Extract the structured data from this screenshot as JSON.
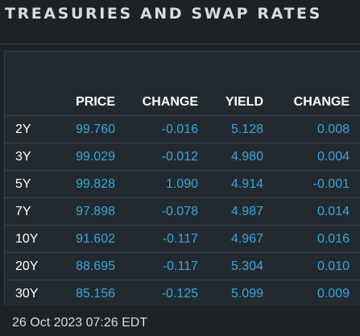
{
  "title": "TREASURIES AND SWAP RATES",
  "columns": {
    "price": "PRICE",
    "change": "CHANGE",
    "yield": "YIELD",
    "yield_change": "CHANGE"
  },
  "rows": [
    {
      "term": "2Y",
      "price": "99.760",
      "change": "-0.016",
      "yield": "5.128",
      "yield_change": "0.008"
    },
    {
      "term": "3Y",
      "price": "99.029",
      "change": "-0.012",
      "yield": "4.980",
      "yield_change": "0.004"
    },
    {
      "term": "5Y",
      "price": "99.828",
      "change": "1.090",
      "yield": "4.914",
      "yield_change": "-0.001"
    },
    {
      "term": "7Y",
      "price": "97.898",
      "change": "-0.078",
      "yield": "4.987",
      "yield_change": "0.014"
    },
    {
      "term": "10Y",
      "price": "91.602",
      "change": "-0.117",
      "yield": "4.967",
      "yield_change": "0.016"
    },
    {
      "term": "20Y",
      "price": "88.695",
      "change": "-0.117",
      "yield": "5.304",
      "yield_change": "0.010"
    },
    {
      "term": "30Y",
      "price": "85.156",
      "change": "-0.125",
      "yield": "5.099",
      "yield_change": "0.009"
    }
  ],
  "timestamp": "26 Oct 2023 07:26 EDT",
  "colors": {
    "background": "#1c2226",
    "panel": "#232a2f",
    "value_blue": "#35a8e0",
    "header_white": "#ffffff",
    "title_gray": "#d8dce0",
    "divider": "#3a4248"
  }
}
